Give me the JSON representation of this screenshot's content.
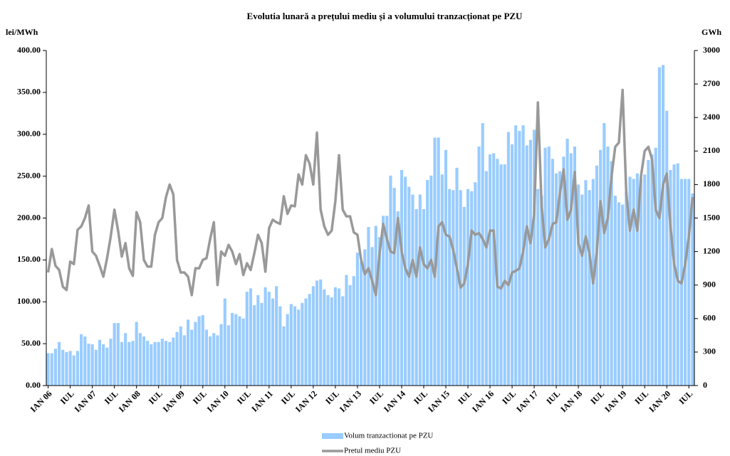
{
  "chart_data": {
    "type": "combo",
    "title": "Evolutia lunară a prețului mediu și a volumului tranzacționat pe PZU",
    "y_label": "lei/MWh",
    "y2_label": "GWh",
    "categories": [
      "IAN 06",
      null,
      null,
      null,
      null,
      null,
      "IUL",
      null,
      null,
      null,
      null,
      null,
      "IAN 07",
      null,
      null,
      null,
      null,
      null,
      "IUL",
      null,
      null,
      null,
      null,
      null,
      "IAN 08",
      null,
      null,
      null,
      null,
      null,
      "IUL",
      null,
      null,
      null,
      null,
      null,
      "IAN 09",
      null,
      null,
      null,
      null,
      null,
      "IUL",
      null,
      null,
      null,
      null,
      null,
      "IAN 10",
      null,
      null,
      null,
      null,
      null,
      "IUL",
      null,
      null,
      null,
      null,
      null,
      "IAN 11",
      null,
      null,
      null,
      null,
      null,
      "IUL",
      null,
      null,
      null,
      null,
      null,
      "IAN 12",
      null,
      null,
      null,
      null,
      null,
      "IUL",
      null,
      null,
      null,
      null,
      null,
      "IAN 13",
      null,
      null,
      null,
      null,
      null,
      "IUL",
      null,
      null,
      null,
      null,
      null,
      "IAN 14",
      null,
      null,
      null,
      null,
      null,
      "IUL",
      null,
      null,
      null,
      null,
      null,
      "IAN 15",
      null,
      null,
      null,
      null,
      null,
      "IUL",
      null,
      null,
      null,
      null,
      null,
      "IAN 16",
      null,
      null,
      null,
      null,
      null,
      "IUL",
      null,
      null,
      null,
      null,
      null,
      "IAN 17",
      null,
      null,
      null,
      null,
      null,
      "IUL",
      null,
      null,
      null,
      null,
      null,
      "IAN 18",
      null,
      null,
      null,
      null,
      null,
      "IUL",
      null,
      null,
      null,
      null,
      null,
      "IAN 19",
      null,
      null,
      null,
      null,
      null,
      "IUL",
      null,
      null,
      null,
      null,
      null,
      "IAN 20",
      null,
      null,
      null,
      null,
      null,
      "IUL",
      null
    ],
    "series": [
      {
        "name": "Volum tranzactionat pe PZU",
        "type": "bar",
        "axis": "y2",
        "color": "#99ccff",
        "values": [
          290,
          290,
          330,
          390,
          320,
          300,
          310,
          270,
          310,
          460,
          440,
          375,
          370,
          320,
          410,
          370,
          340,
          420,
          560,
          560,
          390,
          470,
          390,
          400,
          570,
          470,
          440,
          400,
          370,
          390,
          390,
          420,
          400,
          390,
          430,
          480,
          530,
          450,
          590,
          500,
          570,
          620,
          630,
          500,
          440,
          470,
          450,
          550,
          780,
          540,
          650,
          640,
          620,
          600,
          840,
          870,
          720,
          810,
          740,
          880,
          840,
          780,
          890,
          710,
          530,
          640,
          730,
          710,
          680,
          740,
          780,
          820,
          890,
          940,
          950,
          860,
          810,
          790,
          880,
          870,
          800,
          990,
          900,
          980,
          1190,
          1110,
          1220,
          1420,
          1240,
          1430,
          1330,
          1520,
          1520,
          1880,
          1770,
          1560,
          1930,
          1870,
          1780,
          1710,
          1580,
          1710,
          1580,
          1840,
          1880,
          2220,
          2220,
          1890,
          2110,
          1760,
          1750,
          1950,
          1750,
          1600,
          1760,
          1740,
          1820,
          2140,
          2350,
          1920,
          2070,
          2080,
          2030,
          1980,
          1980,
          2270,
          2160,
          2330,
          2280,
          2330,
          2150,
          2200,
          2290,
          1760,
          1700,
          2130,
          2140,
          2030,
          1900,
          1920,
          2050,
          2210,
          2080,
          2140,
          1800,
          1710,
          1840,
          1750,
          1850,
          1970,
          2110,
          2350,
          2140,
          2010,
          1700,
          1640,
          1620,
          1730,
          1870,
          1850,
          1900,
          1850,
          1890,
          2020,
          2070,
          2130,
          2850,
          2870,
          2460,
          1930,
          1980,
          1990,
          1850,
          1850,
          1850,
          1720
        ]
      },
      {
        "name": "Pretul mediu PZU",
        "type": "line",
        "color": "#999999",
        "values": [
          135,
          163,
          143,
          138,
          118,
          114,
          148,
          145,
          186,
          190,
          200,
          215,
          160,
          155,
          143,
          130,
          152,
          178,
          210,
          185,
          154,
          170,
          140,
          131,
          207,
          195,
          150,
          142,
          142,
          180,
          195,
          200,
          225,
          240,
          228,
          150,
          135,
          135,
          130,
          108,
          140,
          140,
          150,
          152,
          175,
          195,
          120,
          160,
          155,
          168,
          160,
          145,
          157,
          132,
          146,
          138,
          158,
          180,
          170,
          136,
          188,
          198,
          195,
          193,
          226,
          205,
          215,
          214,
          252,
          240,
          275,
          265,
          240,
          302,
          210,
          190,
          180,
          185,
          220,
          275,
          210,
          202,
          202,
          183,
          180,
          150,
          133,
          140,
          125,
          108,
          158,
          193,
          175,
          160,
          158,
          200,
          160,
          140,
          130,
          150,
          130,
          165,
          145,
          140,
          150,
          130,
          190,
          195,
          180,
          178,
          162,
          140,
          117,
          122,
          145,
          185,
          180,
          182,
          175,
          165,
          185,
          185,
          118,
          116,
          125,
          120,
          135,
          137,
          140,
          160,
          190,
          170,
          205,
          338,
          215,
          165,
          175,
          193,
          195,
          230,
          258,
          198,
          210,
          255,
          170,
          155,
          178,
          158,
          122,
          160,
          220,
          182,
          200,
          250,
          285,
          290,
          353,
          230,
          185,
          210,
          185,
          250,
          280,
          285,
          270,
          210,
          200,
          240,
          253,
          190,
          145,
          125,
          122,
          145,
          178,
          225
        ]
      }
    ],
    "ylim": [
      0,
      400
    ],
    "yticks": [
      {
        "value": 0,
        "label": "0.00"
      },
      {
        "value": 50,
        "label": "50.00"
      },
      {
        "value": 100,
        "label": "100.00"
      },
      {
        "value": 150,
        "label": "150.00"
      },
      {
        "value": 200,
        "label": "200.00"
      },
      {
        "value": 250,
        "label": "250.00"
      },
      {
        "value": 300,
        "label": "300.00"
      },
      {
        "value": 350,
        "label": "350.00"
      },
      {
        "value": 400,
        "label": "400.00"
      }
    ],
    "y2lim": [
      0,
      3000
    ],
    "y2ticks": [
      0,
      300,
      600,
      900,
      1200,
      1500,
      1800,
      2100,
      2400,
      2700,
      3000
    ],
    "legend": "bottom"
  }
}
